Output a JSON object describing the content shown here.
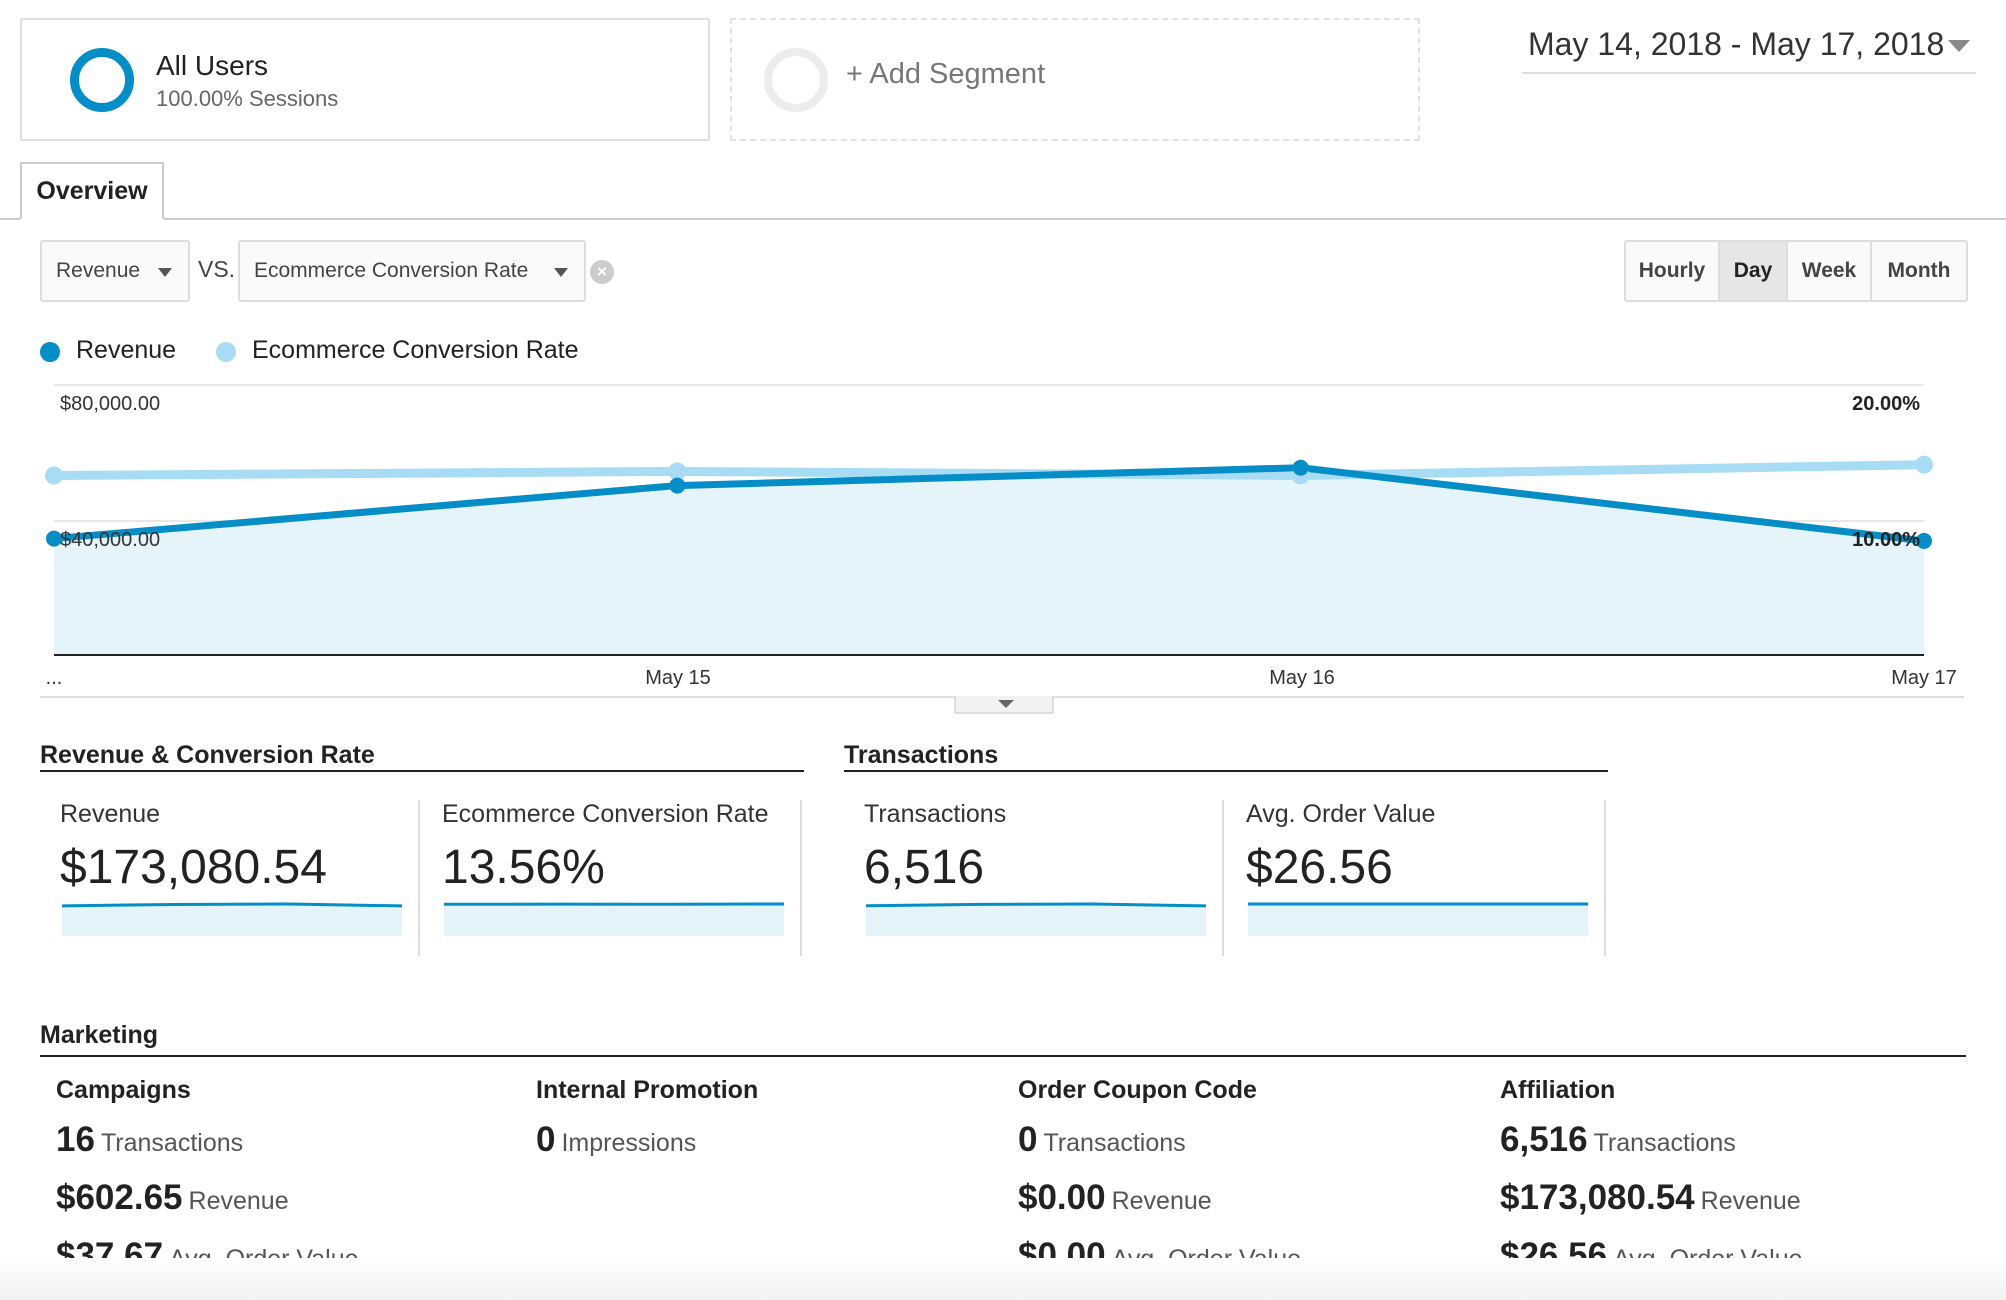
{
  "segments": {
    "all_users": {
      "title": "All Users",
      "subtitle": "100.00% Sessions"
    },
    "add_segment": {
      "label": "+ Add Segment"
    }
  },
  "date_range": "May 14, 2018 - May 17, 2018",
  "tabs": {
    "overview": "Overview"
  },
  "selectors": {
    "primary": "Revenue",
    "vs": "VS.",
    "secondary": "Ecommerce Conversion Rate",
    "clear_icon": "×"
  },
  "granularity": {
    "hourly": "Hourly",
    "day": "Day",
    "week": "Week",
    "month": "Month",
    "selected": "Day"
  },
  "legend": {
    "revenue": "Revenue",
    "conversion": "Ecommerce Conversion Rate"
  },
  "colors": {
    "revenue": "#058dc7",
    "conversion": "#a8dcf5",
    "area": "#e5f4fb"
  },
  "chart_data": {
    "type": "line",
    "x": [
      "May 14",
      "May 15",
      "May 16",
      "May 17"
    ],
    "x_tick_labels": [
      "...",
      "May 15",
      "May 16",
      "May 17"
    ],
    "series": [
      {
        "name": "Revenue",
        "axis": "left",
        "values": [
          34500,
          50200,
          55500,
          33800
        ]
      },
      {
        "name": "Ecommerce Conversion Rate",
        "axis": "right",
        "values": [
          13.3,
          13.6,
          13.3,
          14.1
        ]
      }
    ],
    "y_left": {
      "range": [
        0,
        80000
      ],
      "ticks": [
        "$40,000.00",
        "$80,000.00"
      ],
      "tick_values": [
        40000,
        80000
      ]
    },
    "y_right": {
      "range": [
        0,
        20
      ],
      "ticks": [
        "10.00%",
        "20.00%"
      ],
      "tick_values": [
        10,
        20
      ]
    },
    "grid": true
  },
  "sections": {
    "revenue_conversion": "Revenue & Conversion Rate",
    "transactions": "Transactions",
    "marketing": "Marketing"
  },
  "scorecards": {
    "revenue": {
      "label": "Revenue",
      "value": "$173,080.54",
      "spark": [
        34500,
        50200,
        55500,
        33800
      ]
    },
    "conversion": {
      "label": "Ecommerce Conversion Rate",
      "value": "13.56%",
      "spark": [
        13.3,
        13.6,
        13.3,
        14.1
      ]
    },
    "transactions": {
      "label": "Transactions",
      "value": "6,516",
      "spark": [
        1300,
        1900,
        2050,
        1266
      ]
    },
    "aov": {
      "label": "Avg. Order Value",
      "value": "$26.56",
      "spark": [
        26.5,
        26.4,
        26.6,
        26.7
      ]
    }
  },
  "marketing": {
    "campaigns": {
      "title": "Campaigns",
      "rows": [
        {
          "num": "16",
          "unit": "Transactions"
        },
        {
          "num": "$602.65",
          "unit": "Revenue"
        },
        {
          "num": "$37.67",
          "unit": "Avg. Order Value"
        }
      ]
    },
    "internal_promotion": {
      "title": "Internal Promotion",
      "rows": [
        {
          "num": "0",
          "unit": "Impressions"
        }
      ]
    },
    "order_coupon_code": {
      "title": "Order Coupon Code",
      "rows": [
        {
          "num": "0",
          "unit": "Transactions"
        },
        {
          "num": "$0.00",
          "unit": "Revenue"
        },
        {
          "num": "$0.00",
          "unit": "Avg. Order Value"
        }
      ]
    },
    "affiliation": {
      "title": "Affiliation",
      "rows": [
        {
          "num": "6,516",
          "unit": "Transactions"
        },
        {
          "num": "$173,080.54",
          "unit": "Revenue"
        },
        {
          "num": "$26.56",
          "unit": "Avg. Order Value"
        }
      ]
    }
  }
}
